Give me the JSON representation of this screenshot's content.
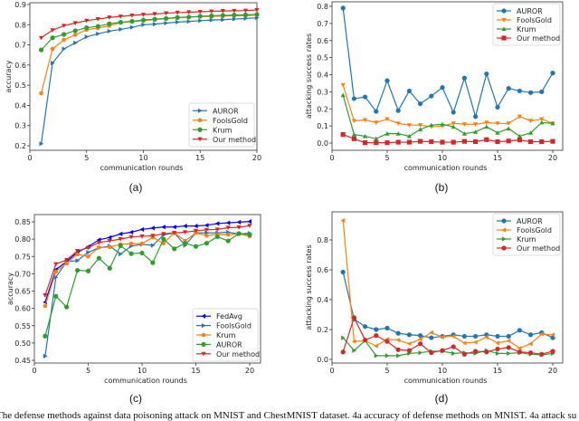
{
  "caption": "The defense methods against data poisoning attack on MNIST and ChestMNIST dataset. 4a accuracy of defense methods on MNIST. 4a attack su",
  "colors": {
    "blue": "#1f77b4",
    "orange": "#ff7f0e",
    "green": "#2ca02c",
    "red": "#d62728",
    "pureblue": "#0000ff"
  },
  "chart_data": [
    {
      "id": "a",
      "type": "line",
      "sublabel": "(a)",
      "title": "",
      "xlabel": "communication rounds",
      "ylabel": "accuracy",
      "xlim": [
        0,
        20
      ],
      "ylim": [
        0.2,
        0.9
      ],
      "xticks": [
        0,
        5,
        10,
        15,
        20
      ],
      "yticks": [
        0.2,
        0.3,
        0.4,
        0.5,
        0.6,
        0.7,
        0.8,
        0.9
      ],
      "ytick_labels": [
        "0.2",
        "0.3",
        "0.4",
        "0.5",
        "0.6",
        "0.7",
        "0.8",
        "0.9"
      ],
      "grid": false,
      "legend_position": "bottom-right",
      "x": [
        1,
        2,
        3,
        4,
        5,
        6,
        7,
        8,
        9,
        10,
        11,
        12,
        13,
        14,
        15,
        16,
        17,
        18,
        19,
        20
      ],
      "series": [
        {
          "name": "AUROR",
          "color": "blue",
          "marker": "triangle-right",
          "values": [
            0.21,
            0.61,
            0.68,
            0.71,
            0.74,
            0.755,
            0.768,
            0.777,
            0.787,
            0.8,
            0.803,
            0.808,
            0.813,
            0.816,
            0.82,
            0.823,
            0.825,
            0.828,
            0.831,
            0.834
          ]
        },
        {
          "name": "FoolsGold",
          "color": "orange",
          "marker": "pentagon",
          "values": [
            0.46,
            0.68,
            0.725,
            0.75,
            0.775,
            0.783,
            0.795,
            0.81,
            0.815,
            0.82,
            0.825,
            0.83,
            0.834,
            0.837,
            0.84,
            0.841,
            0.843,
            0.844,
            0.845,
            0.847
          ]
        },
        {
          "name": "Krum",
          "color": "green",
          "marker": "circle",
          "values": [
            0.675,
            0.735,
            0.752,
            0.77,
            0.785,
            0.792,
            0.805,
            0.812,
            0.817,
            0.823,
            0.827,
            0.831,
            0.836,
            0.838,
            0.842,
            0.844,
            0.846,
            0.848,
            0.849,
            0.851
          ]
        },
        {
          "name": "Our method",
          "color": "red",
          "marker": "triangle-down",
          "values": [
            0.735,
            0.773,
            0.795,
            0.808,
            0.82,
            0.828,
            0.836,
            0.841,
            0.846,
            0.85,
            0.853,
            0.857,
            0.86,
            0.862,
            0.864,
            0.866,
            0.868,
            0.869,
            0.87,
            0.873
          ]
        }
      ]
    },
    {
      "id": "b",
      "type": "line",
      "sublabel": "(b)",
      "title": "",
      "xlabel": "communication rounds",
      "ylabel": "attacking success rates",
      "xlim": [
        0,
        20
      ],
      "ylim": [
        0.0,
        0.8
      ],
      "xticks": [
        0,
        5,
        10,
        15,
        20
      ],
      "yticks": [
        0.0,
        0.1,
        0.2,
        0.3,
        0.4,
        0.5,
        0.6,
        0.7,
        0.8
      ],
      "ytick_labels": [
        "0.0",
        "0.1",
        "0.2",
        "0.3",
        "0.4",
        "0.5",
        "0.6",
        "0.7",
        "0.8"
      ],
      "grid": false,
      "legend_position": "top-right",
      "x": [
        1,
        2,
        3,
        4,
        5,
        6,
        7,
        8,
        9,
        10,
        11,
        12,
        13,
        14,
        15,
        16,
        17,
        18,
        19,
        20
      ],
      "series": [
        {
          "name": "AUROR",
          "color": "blue",
          "marker": "circle",
          "values": [
            0.79,
            0.26,
            0.27,
            0.185,
            0.365,
            0.19,
            0.305,
            0.23,
            0.275,
            0.325,
            0.18,
            0.38,
            0.155,
            0.405,
            0.21,
            0.32,
            0.305,
            0.295,
            0.3,
            0.41
          ]
        },
        {
          "name": "FoolsGold",
          "color": "orange",
          "marker": "triangle-down",
          "values": [
            0.34,
            0.13,
            0.135,
            0.12,
            0.14,
            0.115,
            0.105,
            0.105,
            0.095,
            0.1,
            0.115,
            0.11,
            0.11,
            0.12,
            0.115,
            0.115,
            0.155,
            0.13,
            0.14,
            0.115
          ]
        },
        {
          "name": "Krum",
          "color": "green",
          "marker": "triangle-up",
          "values": [
            0.28,
            0.05,
            0.04,
            0.025,
            0.055,
            0.055,
            0.04,
            0.08,
            0.105,
            0.11,
            0.095,
            0.055,
            0.065,
            0.095,
            0.06,
            0.085,
            0.04,
            0.06,
            0.12,
            0.115
          ]
        },
        {
          "name": "Our method",
          "color": "red",
          "marker": "square",
          "values": [
            0.05,
            0.025,
            0.002,
            0.002,
            0.002,
            0.005,
            0.005,
            0.01,
            0.008,
            0.005,
            0.005,
            0.01,
            0.008,
            0.02,
            0.008,
            0.012,
            0.018,
            0.008,
            0.008,
            0.01
          ]
        }
      ]
    },
    {
      "id": "c",
      "type": "line",
      "sublabel": "(c)",
      "title": "",
      "xlabel": "communication rounds",
      "ylabel": "accuracy",
      "xlim": [
        0,
        20
      ],
      "ylim": [
        0.45,
        0.85
      ],
      "xticks": [
        0,
        5,
        10,
        15,
        20
      ],
      "yticks": [
        0.45,
        0.5,
        0.55,
        0.6,
        0.65,
        0.7,
        0.75,
        0.8,
        0.85
      ],
      "ytick_labels": [
        "0.45",
        "0.50",
        "0.55",
        "0.60",
        "0.65",
        "0.70",
        "0.75",
        "0.80",
        "0.85"
      ],
      "grid": false,
      "legend_position": "bottom-right",
      "x": [
        1,
        2,
        3,
        4,
        5,
        6,
        7,
        8,
        9,
        10,
        11,
        12,
        13,
        14,
        15,
        16,
        17,
        18,
        19,
        20
      ],
      "series": [
        {
          "name": "FedAvg",
          "color": "pureblue",
          "marker": "triangle-left",
          "values": [
            0.618,
            0.712,
            0.735,
            0.762,
            0.778,
            0.798,
            0.805,
            0.815,
            0.82,
            0.828,
            0.832,
            0.835,
            0.835,
            0.838,
            0.838,
            0.84,
            0.845,
            0.847,
            0.849,
            0.851
          ]
        },
        {
          "name": "FoolsGold",
          "color": "blue",
          "marker": "triangle-right",
          "values": [
            0.462,
            0.69,
            0.735,
            0.738,
            0.762,
            0.775,
            0.78,
            0.757,
            0.78,
            0.785,
            0.782,
            0.812,
            0.818,
            0.782,
            0.818,
            0.818,
            0.818,
            0.82,
            0.815,
            0.817
          ]
        },
        {
          "name": "Krum",
          "color": "orange",
          "marker": "pentagon",
          "values": [
            0.607,
            0.706,
            0.73,
            0.756,
            0.75,
            0.776,
            0.777,
            0.785,
            0.787,
            0.787,
            0.805,
            0.788,
            0.818,
            0.795,
            0.818,
            0.81,
            0.813,
            0.813,
            0.815,
            0.808
          ]
        },
        {
          "name": "AUROR",
          "color": "green",
          "marker": "circle",
          "values": [
            0.52,
            0.635,
            0.604,
            0.71,
            0.708,
            0.745,
            0.716,
            0.781,
            0.758,
            0.76,
            0.732,
            0.8,
            0.772,
            0.788,
            0.779,
            0.788,
            0.807,
            0.795,
            0.816,
            0.813
          ]
        },
        {
          "name": "Our method",
          "color": "red",
          "marker": "triangle-down",
          "values": [
            0.638,
            0.728,
            0.74,
            0.766,
            0.775,
            0.79,
            0.795,
            0.8,
            0.806,
            0.808,
            0.81,
            0.815,
            0.818,
            0.82,
            0.824,
            0.827,
            0.828,
            0.833,
            0.834,
            0.839
          ]
        }
      ]
    },
    {
      "id": "d",
      "type": "line",
      "sublabel": "(d)",
      "title": "",
      "xlabel": "communication rounds",
      "ylabel": "attacking success rates",
      "xlim": [
        0,
        20
      ],
      "ylim": [
        0.0,
        0.9
      ],
      "xticks": [
        0,
        5,
        10,
        15,
        20
      ],
      "yticks": [
        0.0,
        0.2,
        0.4,
        0.6,
        0.8
      ],
      "ytick_labels": [
        "0.0",
        "0.2",
        "0.4",
        "0.6",
        "0.8"
      ],
      "grid": false,
      "legend_position": "top-right",
      "x": [
        1,
        2,
        3,
        4,
        5,
        6,
        7,
        8,
        9,
        10,
        11,
        12,
        13,
        14,
        15,
        16,
        17,
        18,
        19,
        20
      ],
      "series": [
        {
          "name": "AUROR",
          "color": "blue",
          "marker": "circle",
          "values": [
            0.585,
            0.27,
            0.22,
            0.2,
            0.21,
            0.175,
            0.165,
            0.16,
            0.145,
            0.155,
            0.165,
            0.155,
            0.155,
            0.165,
            0.155,
            0.155,
            0.195,
            0.165,
            0.18,
            0.145
          ]
        },
        {
          "name": "FoolsGold",
          "color": "orange",
          "marker": "triangle-left",
          "values": [
            0.93,
            0.12,
            0.125,
            0.09,
            0.135,
            0.13,
            0.105,
            0.135,
            0.18,
            0.15,
            0.155,
            0.11,
            0.115,
            0.15,
            0.11,
            0.125,
            0.075,
            0.105,
            0.17,
            0.165
          ]
        },
        {
          "name": "Krum",
          "color": "green",
          "marker": "triangle-right",
          "values": [
            0.145,
            0.06,
            0.125,
            0.025,
            0.025,
            0.025,
            0.04,
            0.045,
            0.055,
            0.055,
            0.04,
            0.045,
            0.04,
            0.06,
            0.04,
            0.04,
            0.045,
            0.035,
            0.03,
            0.04
          ]
        },
        {
          "name": "Our method",
          "color": "red",
          "marker": "circle",
          "values": [
            0.05,
            0.28,
            0.13,
            0.16,
            0.12,
            0.065,
            0.06,
            0.105,
            0.045,
            0.06,
            0.085,
            0.035,
            0.055,
            0.05,
            0.07,
            0.08,
            0.05,
            0.045,
            0.035,
            0.055
          ]
        }
      ]
    }
  ]
}
